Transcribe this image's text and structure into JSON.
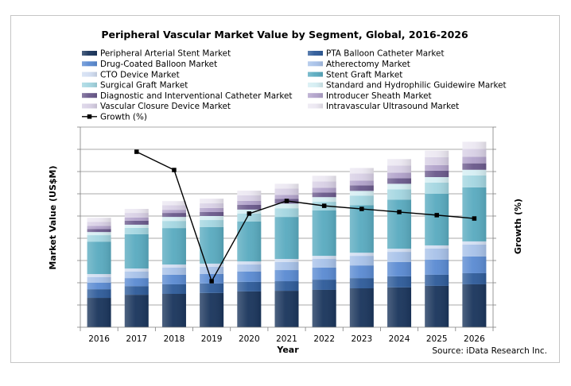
{
  "chart_data": {
    "type": "bar",
    "stacked": true,
    "title": "Peripheral Vascular Market Value by Segment, Global, 2016-2026",
    "xlabel": "Year",
    "ylabel": "Market Value (US$M)",
    "y2label": "Growth (%)",
    "categories": [
      "2016",
      "2017",
      "2018",
      "2019",
      "2020",
      "2021",
      "2022",
      "2023",
      "2024",
      "2025",
      "2026"
    ],
    "ylim": [
      0,
      9
    ],
    "y2lim": [
      0,
      9
    ],
    "grid": true,
    "legend_position": "top",
    "series": [
      {
        "name": "Peripheral Arterial Stent Market",
        "color": "#1b365d",
        "values": [
          1.32,
          1.46,
          1.5,
          1.54,
          1.61,
          1.64,
          1.68,
          1.75,
          1.79,
          1.86,
          1.93
        ]
      },
      {
        "name": "PTA Balloon Catheter Market",
        "color": "#2f5c9a",
        "values": [
          0.39,
          0.39,
          0.43,
          0.43,
          0.43,
          0.43,
          0.46,
          0.46,
          0.5,
          0.5,
          0.5
        ]
      },
      {
        "name": "Drug-Coated Balloon Market",
        "color": "#5b8bd2",
        "values": [
          0.29,
          0.36,
          0.43,
          0.43,
          0.46,
          0.5,
          0.54,
          0.57,
          0.64,
          0.68,
          0.75
        ]
      },
      {
        "name": "Atherectomy Market",
        "color": "#a8c2e9",
        "values": [
          0.25,
          0.29,
          0.32,
          0.32,
          0.32,
          0.36,
          0.39,
          0.43,
          0.46,
          0.5,
          0.54
        ]
      },
      {
        "name": "CTO Device Market",
        "color": "#d2def2",
        "values": [
          0.14,
          0.14,
          0.14,
          0.14,
          0.14,
          0.14,
          0.14,
          0.14,
          0.14,
          0.14,
          0.14
        ]
      },
      {
        "name": "Stent Graft Market",
        "color": "#5aabc0",
        "values": [
          1.46,
          1.54,
          1.64,
          1.64,
          1.79,
          1.89,
          2.04,
          2.14,
          2.21,
          2.32,
          2.43
        ]
      },
      {
        "name": "Surgical Graft Market",
        "color": "#a4d6e1",
        "values": [
          0.29,
          0.29,
          0.32,
          0.32,
          0.36,
          0.39,
          0.39,
          0.43,
          0.46,
          0.5,
          0.54
        ]
      },
      {
        "name": "Standard and Hydrophilic Guidewire Market",
        "color": "#d5eef3",
        "values": [
          0.14,
          0.14,
          0.18,
          0.18,
          0.18,
          0.21,
          0.21,
          0.21,
          0.25,
          0.25,
          0.25
        ]
      },
      {
        "name": "Diagnostic and Interventional Catheter Market",
        "color": "#6b5a8c",
        "values": [
          0.14,
          0.18,
          0.18,
          0.18,
          0.21,
          0.21,
          0.21,
          0.25,
          0.25,
          0.29,
          0.29
        ]
      },
      {
        "name": "Introducer Sheath Market",
        "color": "#b2a3cb",
        "values": [
          0.14,
          0.14,
          0.14,
          0.18,
          0.18,
          0.18,
          0.21,
          0.21,
          0.25,
          0.25,
          0.29
        ]
      },
      {
        "name": "Vascular Closure Device Market",
        "color": "#d8d0e5",
        "values": [
          0.18,
          0.21,
          0.21,
          0.21,
          0.25,
          0.29,
          0.29,
          0.32,
          0.32,
          0.36,
          0.36
        ]
      },
      {
        "name": "Intravascular Ultrasound Market",
        "color": "#ece8f2",
        "values": [
          0.18,
          0.18,
          0.18,
          0.21,
          0.21,
          0.21,
          0.25,
          0.25,
          0.29,
          0.29,
          0.32
        ]
      }
    ],
    "line_series": {
      "name": "Growth (%)",
      "color": "#000000",
      "values": [
        null,
        7.89,
        7.07,
        2.07,
        5.11,
        5.68,
        5.46,
        5.32,
        5.18,
        5.04,
        4.89
      ]
    },
    "source": "Source: iData Research Inc."
  }
}
